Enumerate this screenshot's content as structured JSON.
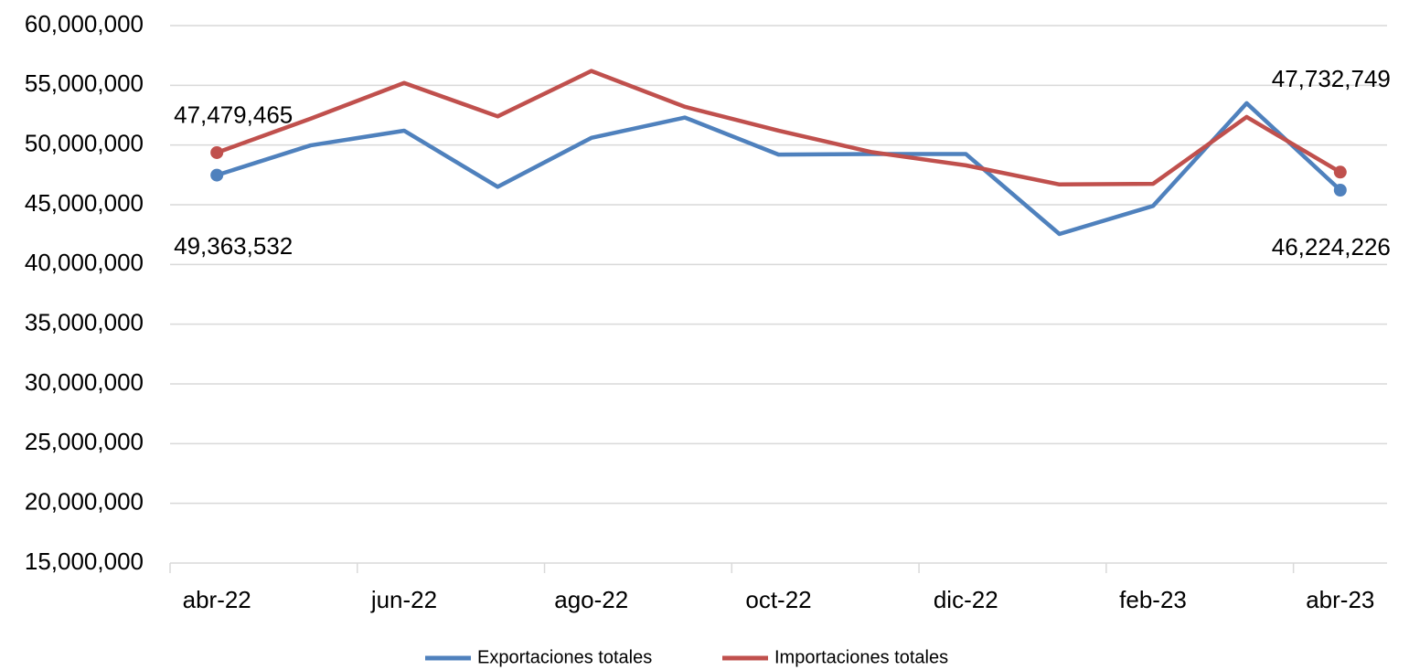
{
  "chart_data": {
    "type": "line",
    "categories": [
      "abr-22",
      null,
      "jun-22",
      null,
      "ago-22",
      null,
      "oct-22",
      null,
      "dic-22",
      null,
      "feb-23",
      null,
      "abr-23"
    ],
    "series": [
      {
        "name": "Exportaciones totales",
        "color": "#4f81bd",
        "values": [
          47479465,
          49970000,
          51200000,
          46500000,
          50600000,
          52300000,
          49200000,
          49250000,
          49250000,
          42550000,
          44900000,
          53500000,
          46224226
        ],
        "value_labels": [
          "47,479,465",
          null,
          null,
          null,
          null,
          null,
          null,
          null,
          null,
          null,
          null,
          null,
          "46,224,226"
        ]
      },
      {
        "name": "Importaciones totales",
        "color": "#c0504d",
        "values": [
          49363532,
          52200000,
          55200000,
          52400000,
          56200000,
          53200000,
          51200000,
          49400000,
          48300000,
          46700000,
          46750000,
          52350000,
          47732749
        ],
        "value_labels": [
          "49,363,532",
          null,
          null,
          null,
          null,
          null,
          null,
          null,
          null,
          null,
          null,
          null,
          "47,732,749"
        ]
      }
    ],
    "ylim": [
      15000000,
      60000000
    ],
    "yticks": [
      {
        "value": 15000000,
        "label": "15,000,000"
      },
      {
        "value": 20000000,
        "label": "20,000,000"
      },
      {
        "value": 25000000,
        "label": "25,000,000"
      },
      {
        "value": 30000000,
        "label": "30,000,000"
      },
      {
        "value": 35000000,
        "label": "35,000,000"
      },
      {
        "value": 40000000,
        "label": "40,000,000"
      },
      {
        "value": 45000000,
        "label": "45,000,000"
      },
      {
        "value": 50000000,
        "label": "50,000,000"
      },
      {
        "value": 55000000,
        "label": "55,000,000"
      },
      {
        "value": 60000000,
        "label": "60,000,000"
      }
    ],
    "grid": true,
    "legend": "bottom"
  }
}
